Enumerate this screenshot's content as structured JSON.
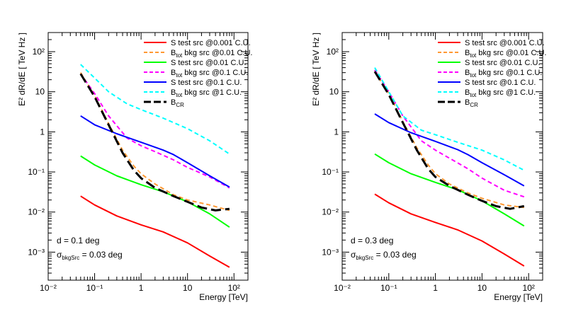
{
  "chart_data": [
    {
      "type": "line",
      "xscale": "log",
      "yscale": "log",
      "xlim": [
        0.01,
        200
      ],
      "ylim": [
        0.0002,
        300
      ],
      "xlabel": "Energy [TeV]",
      "ylabel": "E² dR/dE [ TeV Hz ]",
      "x_ticks": [
        "10⁻²",
        "10⁻¹",
        "1",
        "10",
        "10²"
      ],
      "y_ticks": [
        "10⁻³",
        "10⁻²",
        "10⁻¹",
        "1",
        "10",
        "10²"
      ],
      "annotation": {
        "distance": "d = 0.1 deg",
        "sigma_prefix": "σ",
        "sigma_sub": "bkgSrc",
        "sigma_suffix": " = 0.03 deg"
      },
      "series": [
        {
          "name": "S   test src @0.001 C.U.",
          "color": "#ff0000",
          "dashed": false,
          "x": [
            0.05,
            0.1,
            0.3,
            1,
            3,
            10,
            30,
            80
          ],
          "y": [
            0.025,
            0.015,
            0.008,
            0.0048,
            0.0032,
            0.0017,
            0.0008,
            0.00042
          ]
        },
        {
          "name_base": "B",
          "name_sub": "tot",
          "name_rest": "  bkg src @0.01 C.U.",
          "color": "#ff9933",
          "dashed": true,
          "x": [
            0.05,
            0.1,
            0.2,
            0.4,
            0.7,
            1,
            2,
            5,
            10,
            30,
            80
          ],
          "y": [
            30,
            8,
            1.6,
            0.35,
            0.14,
            0.09,
            0.05,
            0.027,
            0.02,
            0.015,
            0.011
          ]
        },
        {
          "name": "S   test src @0.01 C.U.",
          "color": "#00ff00",
          "dashed": false,
          "x": [
            0.05,
            0.1,
            0.3,
            1,
            3,
            10,
            30,
            80
          ],
          "y": [
            0.25,
            0.15,
            0.08,
            0.048,
            0.032,
            0.018,
            0.009,
            0.0042
          ]
        },
        {
          "name_base": "B",
          "name_sub": "tot",
          "name_rest": "  bkg src @0.1 C.U.",
          "color": "#ff00ff",
          "dashed": true,
          "x": [
            0.05,
            0.1,
            0.2,
            0.5,
            1,
            2,
            5,
            10,
            30,
            80
          ],
          "y": [
            28,
            9,
            2.5,
            0.7,
            0.45,
            0.32,
            0.2,
            0.13,
            0.075,
            0.04
          ]
        },
        {
          "name": "S   test src @0.1 C.U.",
          "color": "#0000ff",
          "dashed": false,
          "x": [
            0.05,
            0.1,
            0.3,
            1,
            3,
            5,
            10,
            30,
            80
          ],
          "y": [
            2.5,
            1.5,
            0.9,
            0.55,
            0.35,
            0.27,
            0.17,
            0.08,
            0.042
          ]
        },
        {
          "name_base": "B",
          "name_sub": "tot",
          "name_rest": " bkg src @1 C.U.",
          "color": "#00ffff",
          "dashed": true,
          "x": [
            0.05,
            0.1,
            0.2,
            0.5,
            1,
            3,
            10,
            30,
            80
          ],
          "y": [
            48,
            22,
            10,
            5,
            3.6,
            2.2,
            1.2,
            0.6,
            0.28
          ]
        },
        {
          "name_base": "B",
          "name_sub": "CR",
          "name_rest": "",
          "color": "#000000",
          "dashed": true,
          "bold": true,
          "x": [
            0.05,
            0.1,
            0.2,
            0.4,
            0.7,
            1,
            2,
            5,
            10,
            20,
            40,
            80
          ],
          "y": [
            28,
            7.5,
            1.5,
            0.3,
            0.11,
            0.07,
            0.04,
            0.025,
            0.018,
            0.013,
            0.011,
            0.012
          ]
        }
      ]
    },
    {
      "type": "line",
      "xscale": "log",
      "yscale": "log",
      "xlim": [
        0.01,
        200
      ],
      "ylim": [
        0.0002,
        300
      ],
      "xlabel": "Energy [TeV]",
      "ylabel": "E² dR/dE [ TeV Hz ]",
      "x_ticks": [
        "10⁻²",
        "10⁻¹",
        "1",
        "10",
        "10²"
      ],
      "y_ticks": [
        "10⁻³",
        "10⁻²",
        "10⁻¹",
        "1",
        "10",
        "10²"
      ],
      "annotation": {
        "distance": "d = 0.3 deg",
        "sigma_prefix": "σ",
        "sigma_sub": "bkgSrc",
        "sigma_suffix": " = 0.03 deg"
      },
      "series": [
        {
          "name": "S   test src @0.001 C.U.",
          "color": "#ff0000",
          "dashed": false,
          "x": [
            0.05,
            0.1,
            0.3,
            1,
            3,
            10,
            30,
            80
          ],
          "y": [
            0.028,
            0.017,
            0.009,
            0.0055,
            0.0036,
            0.0019,
            0.0009,
            0.00045
          ]
        },
        {
          "name_base": "B",
          "name_sub": "tot",
          "name_rest": "  bkg src @0.01 C.U.",
          "color": "#ff9933",
          "dashed": true,
          "x": [
            0.05,
            0.1,
            0.2,
            0.4,
            0.7,
            1,
            2,
            5,
            10,
            30,
            80
          ],
          "y": [
            32,
            9,
            1.8,
            0.4,
            0.15,
            0.09,
            0.05,
            0.03,
            0.022,
            0.015,
            0.013
          ]
        },
        {
          "name": "S   test src @0.01 C.U.",
          "color": "#00ff00",
          "dashed": false,
          "x": [
            0.05,
            0.1,
            0.3,
            1,
            3,
            10,
            30,
            80
          ],
          "y": [
            0.28,
            0.17,
            0.09,
            0.055,
            0.036,
            0.019,
            0.009,
            0.0045
          ]
        },
        {
          "name_base": "B",
          "name_sub": "tot",
          "name_rest": "  bkg src @0.1 C.U.",
          "color": "#ff00ff",
          "dashed": true,
          "x": [
            0.05,
            0.1,
            0.2,
            0.5,
            1,
            2,
            5,
            10,
            30,
            80
          ],
          "y": [
            35,
            10,
            2.5,
            0.6,
            0.35,
            0.22,
            0.12,
            0.07,
            0.035,
            0.024
          ]
        },
        {
          "name": "S   test src @0.1 C.U.",
          "color": "#0000ff",
          "dashed": false,
          "x": [
            0.05,
            0.1,
            0.3,
            1,
            3,
            5,
            10,
            30,
            80
          ],
          "y": [
            2.8,
            1.7,
            0.95,
            0.58,
            0.36,
            0.27,
            0.17,
            0.085,
            0.045
          ]
        },
        {
          "name_base": "B",
          "name_sub": "tot",
          "name_rest": " bkg src @1 C.U.",
          "color": "#00ffff",
          "dashed": true,
          "x": [
            0.05,
            0.1,
            0.2,
            0.5,
            1,
            3,
            10,
            30,
            80
          ],
          "y": [
            40,
            10,
            2.5,
            1.1,
            0.85,
            0.55,
            0.35,
            0.2,
            0.11
          ]
        },
        {
          "name_base": "B",
          "name_sub": "CR",
          "name_rest": "",
          "color": "#000000",
          "dashed": true,
          "bold": true,
          "x": [
            0.05,
            0.1,
            0.2,
            0.4,
            0.7,
            1,
            2,
            5,
            10,
            20,
            40,
            80
          ],
          "y": [
            32,
            8.5,
            1.7,
            0.35,
            0.12,
            0.075,
            0.045,
            0.027,
            0.019,
            0.014,
            0.012,
            0.014
          ]
        }
      ]
    }
  ]
}
